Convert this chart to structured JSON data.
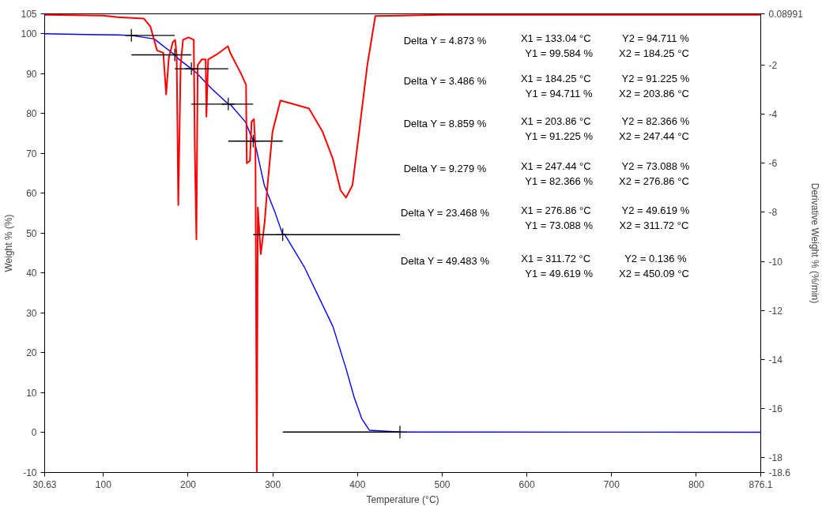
{
  "chart_data": {
    "type": "line",
    "xlabel": "Temperature (°C)",
    "ylabel": "Weight % (%)",
    "y2label": "Derivative Weight % (%/min)",
    "xlim": [
      30.63,
      876.1
    ],
    "xticks": [
      30.63,
      100,
      200,
      300,
      400,
      500,
      600,
      700,
      800,
      876.1
    ],
    "ylim": [
      -10,
      105
    ],
    "yticks": [
      -10,
      0,
      10,
      20,
      30,
      40,
      50,
      60,
      70,
      80,
      90,
      100,
      105
    ],
    "y2lim": [
      -18.6,
      0.08991
    ],
    "y2ticks": [
      -18.6,
      -18,
      -16,
      -14,
      -12,
      -10,
      -8,
      -6,
      -4,
      -2,
      0.08991
    ],
    "grid": false,
    "series": [
      {
        "color": "#0000ff",
        "x": [
          30.63,
          80,
          116.7,
          133.04,
          160,
          184.25,
          188,
          203.86,
          209.8,
          228,
          247.44,
          249.8,
          268,
          276.86,
          277.7,
          290,
          303,
          311.72,
          313.7,
          337,
          352,
          371,
          386.5,
          396,
          405,
          414,
          450.09,
          876.1
        ],
        "values": [
          100,
          99.8,
          99.7,
          99.584,
          98.7,
          94.711,
          93.8,
          91.225,
          90.2,
          86.2,
          82.366,
          82.3,
          77.8,
          73.088,
          73.8,
          62,
          55,
          49.619,
          49.8,
          41.6,
          35,
          26.6,
          16,
          8.9,
          3.5,
          0.6,
          0.136,
          0.1
        ]
      },
      {
        "color": "#ff0000",
        "axis": "y2",
        "x": [
          30.63,
          100,
          116.7,
          147.7,
          155.5,
          163.3,
          170.7,
          174.1,
          177.2,
          181.9,
          184.7,
          186.5,
          188.4,
          191.2,
          194,
          200.5,
          206.7,
          207.9,
          209.8,
          211.3,
          216,
          220.7,
          221.6,
          223.7,
          234.6,
          247,
          249.8,
          262.5,
          268.4,
          269.3,
          273,
          274.9,
          277.7,
          279.5,
          281.1,
          282.3,
          285.8,
          290.4,
          293.5,
          299.7,
          309,
          330.7,
          342.8,
          358.6,
          370.7,
          380,
          386.5,
          394,
          402,
          411.6,
          421,
          500,
          600,
          700,
          876.1
        ],
        "values": [
          0.05,
          0.02,
          -0.05,
          -0.1,
          -0.43,
          -1.4,
          -1.5,
          -3.2,
          -1.7,
          -1.07,
          -0.97,
          -1.6,
          -7.7,
          -2.0,
          -0.97,
          -0.87,
          -0.97,
          -5.4,
          -9.1,
          -2.0,
          -1.77,
          -1.77,
          -4.1,
          -1.77,
          -1.55,
          -1.23,
          -1.5,
          -2.35,
          -2.8,
          -6.0,
          -5.9,
          -4.3,
          -4.2,
          -5.4,
          -18.6,
          -7.8,
          -9.7,
          -8.4,
          -7.0,
          -4.7,
          -3.44,
          -3.65,
          -3.77,
          -4.7,
          -5.8,
          -7.1,
          -7.4,
          -6.9,
          -4.7,
          -2.0,
          0.0,
          0.05,
          0.05,
          0.05,
          0.05
        ]
      },
      {
        "color": "#000000",
        "x": [
          133.04,
          184.25
        ],
        "values": [
          99.584,
          99.584
        ]
      },
      {
        "color": "#000000",
        "x": [
          133.04,
          203.86
        ],
        "values": [
          94.711,
          94.711
        ]
      },
      {
        "color": "#000000",
        "x": [
          184.25,
          247.44
        ],
        "values": [
          91.225,
          91.225
        ]
      },
      {
        "color": "#000000",
        "x": [
          203.86,
          276.86
        ],
        "values": [
          82.366,
          82.366
        ]
      },
      {
        "color": "#000000",
        "x": [
          247.44,
          311.72
        ],
        "values": [
          73.088,
          73.088
        ]
      },
      {
        "color": "#000000",
        "x": [
          276.86,
          450.09
        ],
        "values": [
          49.619,
          49.619
        ]
      },
      {
        "color": "#000000",
        "x": [
          311.72,
          450.09
        ],
        "values": [
          0.136,
          0.136
        ]
      },
      {
        "type": "scatter",
        "marker": "cross",
        "color": "#000000",
        "x": [
          133.04,
          184.25,
          203.86,
          247.44,
          276.86,
          311.72,
          450.09
        ],
        "values": [
          99.584,
          94.711,
          91.225,
          82.366,
          73.088,
          49.619,
          0.136
        ]
      }
    ],
    "annotations": [
      "Delta Y = 4.873 %",
      "X1 = 133.04 °C",
      "Y1 = 99.584 %",
      "Y2 = 94.711 %",
      "X2 = 184.25 °C",
      "Delta Y = 3.486 %",
      "X1 = 184.25 °C",
      "Y1 = 94.711 %",
      "Y2 = 91.225 %",
      "X2 = 203.86 °C",
      "Delta Y = 8.859 %",
      "X1 = 203.86 °C",
      "Y1 = 91.225 %",
      "Y2 = 82.366 %",
      "X2 = 247.44 °C",
      "Delta Y = 9.279 %",
      "X1 = 247.44 °C",
      "Y1 = 82.366 %",
      "Y2 = 73.088 %",
      "X2 = 276.86 °C",
      "Delta Y = 23.468 %",
      "X1 = 276.86 °C",
      "Y1 = 73.088 %",
      "Y2 = 49.619 %",
      "X2 = 311.72 °C",
      "Delta Y = 49.483 %",
      "X1 = 311.72 °C",
      "Y1 = 49.619 %",
      "Y2 = 0.136 %",
      "X2 = 450.09 °C"
    ]
  }
}
